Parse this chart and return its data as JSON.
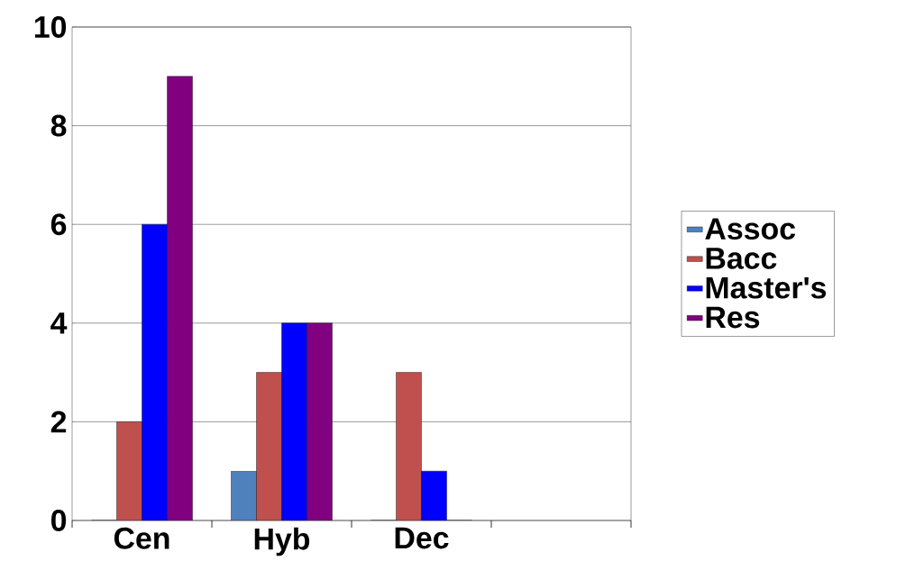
{
  "chart_data": {
    "type": "bar",
    "categories": [
      "Cen",
      "Hyb",
      "Dec",
      null
    ],
    "series": [
      {
        "name": "Assoc",
        "color": "#4f81bd",
        "values": [
          0,
          1,
          0,
          null
        ]
      },
      {
        "name": "Bacc",
        "color": "#c0504d",
        "values": [
          2,
          3,
          3,
          null
        ]
      },
      {
        "name": "Master's",
        "color": "#0000ff",
        "values": [
          6,
          4,
          1,
          null
        ]
      },
      {
        "name": "Res",
        "color": "#800080",
        "values": [
          9,
          4,
          0,
          null
        ]
      }
    ],
    "ylim": [
      0,
      10
    ],
    "yticks": [
      0,
      2,
      4,
      6,
      8,
      10
    ],
    "grid": "y",
    "legend": "right"
  }
}
